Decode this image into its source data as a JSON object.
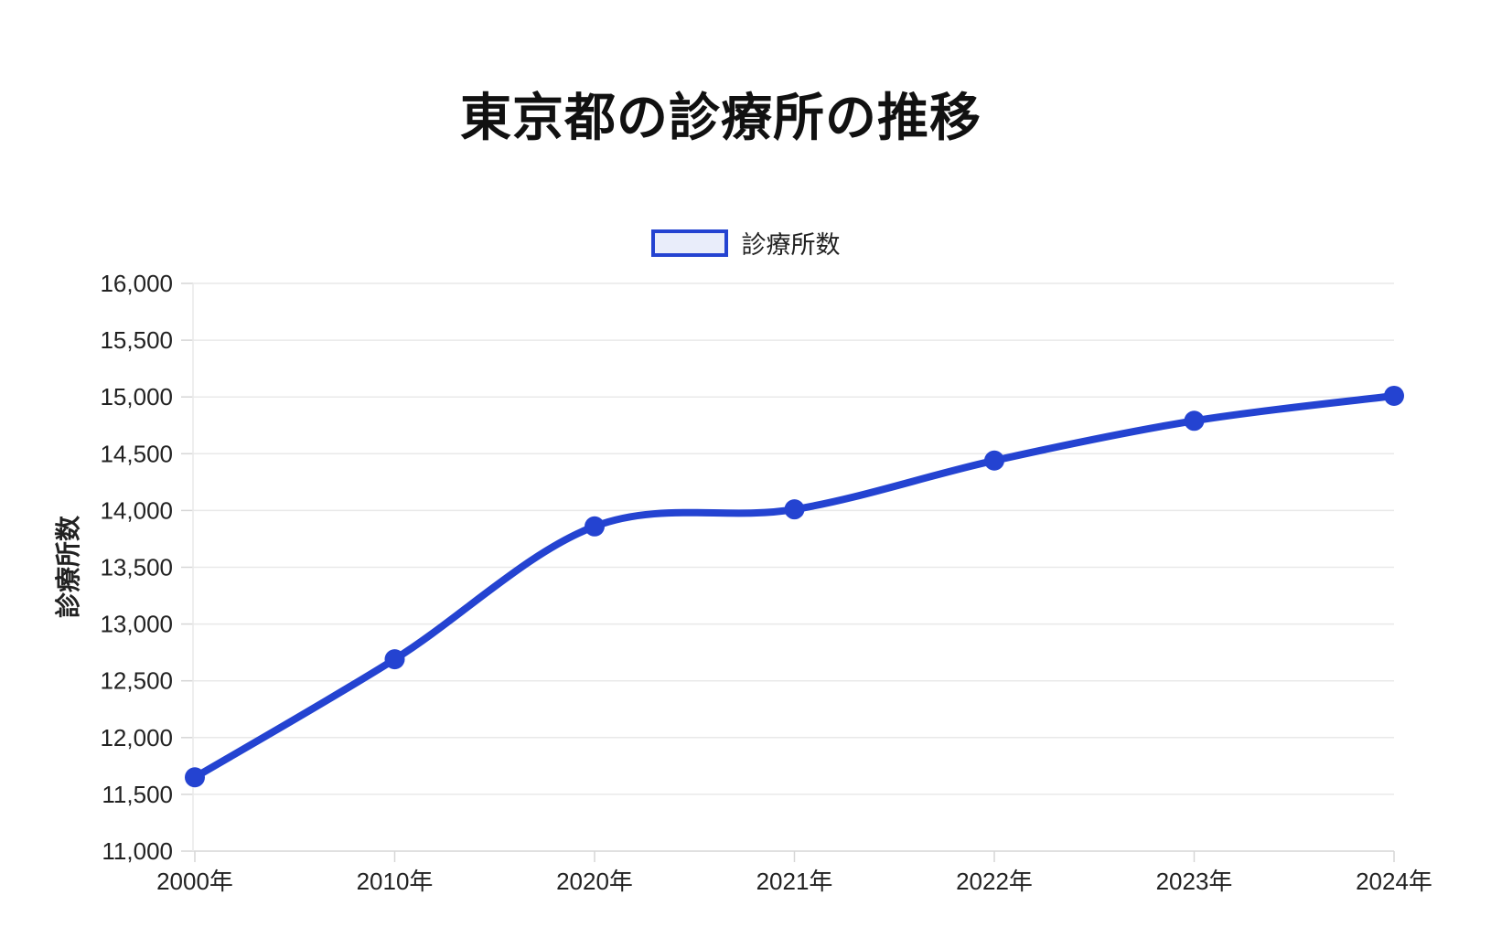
{
  "chart": {
    "title": "東京都の診療所の推移",
    "legend_label": "診療所数"
  },
  "chart_data": {
    "type": "line",
    "title": "東京都の診療所の推移",
    "categories": [
      "2000年",
      "2010年",
      "2020年",
      "2021年",
      "2022年",
      "2023年",
      "2024年"
    ],
    "series": [
      {
        "name": "診療所数",
        "values": [
          11650,
          12690,
          13860,
          14010,
          14440,
          14790,
          15010
        ]
      }
    ],
    "xlabel": "",
    "ylabel": "診療所数",
    "ylim": [
      11000,
      16000
    ],
    "ytick_step": 500,
    "grid": true,
    "smooth": true,
    "legend_position": "top",
    "colors": {
      "line": "#2443d1",
      "point": "#2443d1",
      "legend_fill": "#e9edfa",
      "grid": "#e9e9e9",
      "axis": "#d6d6d6",
      "tick_text": "#222222",
      "title_text": "#111111"
    }
  }
}
